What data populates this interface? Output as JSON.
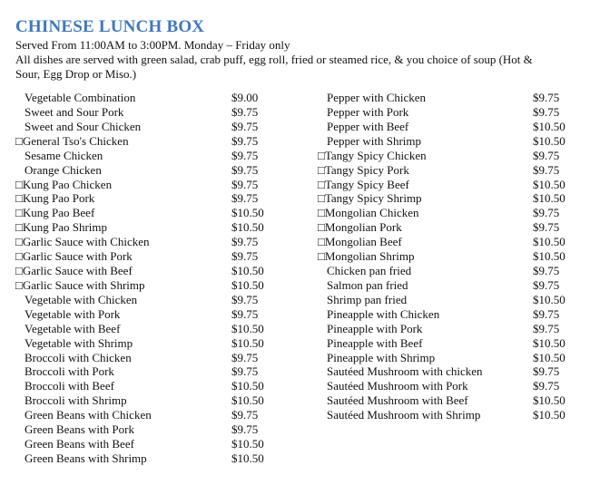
{
  "header": {
    "title": "CHINESE LUNCH BOX",
    "lines": [
      "Served From 11:00AM to 3:00PM. Monday – Friday only",
      "All dishes are served with green salad, crab puff, egg roll, fried or steamed rice, & you choice of soup (Hot &",
      "Sour, Egg Drop or Miso.)"
    ]
  },
  "columns": [
    [
      [
        "Vegetable Combination",
        "$9.00"
      ],
      [
        "Sweet and Sour Pork",
        "$9.75"
      ],
      [
        "Sweet and Sour Chicken",
        "$9.75"
      ],
      [
        "□General Tso's  Chicken",
        "$9.75"
      ],
      [
        "Sesame Chicken",
        "$9.75"
      ],
      [
        "Orange Chicken",
        "$9.75"
      ],
      [
        "□Kung Pao Chicken",
        "$9.75"
      ],
      [
        "□Kung Pao Pork",
        "$9.75"
      ],
      [
        "□Kung Pao Beef",
        "$10.50"
      ],
      [
        "□Kung Pao Shrimp",
        "$10.50"
      ],
      [
        "□Garlic Sauce with Chicken",
        "$9.75"
      ],
      [
        "□Garlic Sauce with Pork",
        "$9.75"
      ],
      [
        "□Garlic Sauce with Beef",
        "$10.50"
      ],
      [
        "□Garlic Sauce with Shrimp",
        "$10.50"
      ],
      [
        "Vegetable with Chicken",
        "$9.75"
      ],
      [
        "Vegetable with Pork",
        "$9.75"
      ],
      [
        "Vegetable with Beef",
        "$10.50"
      ],
      [
        "Vegetable with Shrimp",
        "$10.50"
      ],
      [
        "Broccoli with Chicken",
        "$9.75"
      ],
      [
        "Broccoli with Pork",
        "$9.75"
      ],
      [
        "Broccoli with Beef",
        "$10.50"
      ],
      [
        "Broccoli with Shrimp",
        "$10.50"
      ],
      [
        "Green Beans with Chicken",
        "$9.75"
      ],
      [
        "Green Beans with Pork",
        "$9.75"
      ],
      [
        "Green Beans with Beef",
        "$10.50"
      ],
      [
        "Green Beans with Shrimp",
        "$10.50"
      ]
    ],
    [
      [
        "Pepper with Chicken",
        "$9.75"
      ],
      [
        "Pepper with Pork",
        "$9.75"
      ],
      [
        "Pepper with Beef",
        "$10.50"
      ],
      [
        "Pepper with Shrimp",
        "$10.50"
      ],
      [
        "□Tangy Spicy Chicken",
        "$9.75"
      ],
      [
        "□Tangy Spicy Pork",
        "$9.75"
      ],
      [
        "□Tangy Spicy Beef",
        "$10.50"
      ],
      [
        "□Tangy Spicy Shrimp",
        "$10.50"
      ],
      [
        "□Mongolian Chicken",
        "$9.75"
      ],
      [
        "□Mongolian Pork",
        "$9.75"
      ],
      [
        "□Mongolian Beef",
        "$10.50"
      ],
      [
        "□Mongolian Shrimp",
        "$10.50"
      ],
      [
        "Chicken pan fried",
        "$9.75"
      ],
      [
        "Salmon pan fried",
        "$9.75"
      ],
      [
        "Shrimp pan fried",
        "$10.50"
      ],
      [
        "Pineapple with Chicken",
        "$9.75"
      ],
      [
        "Pineapple with Pork",
        "$9.75"
      ],
      [
        "Pineapple with Beef",
        "$10.50"
      ],
      [
        "Pineapple with Shrimp",
        "$10.50"
      ],
      [
        "Sautéed Mushroom with chicken",
        "$9.75"
      ],
      [
        "Sautéed Mushroom with Pork",
        "$9.75"
      ],
      [
        "Sautéed Mushroom with Beef",
        "$10.50"
      ],
      [
        "Sautéed Mushroom with Shrimp",
        "$10.50"
      ]
    ]
  ]
}
